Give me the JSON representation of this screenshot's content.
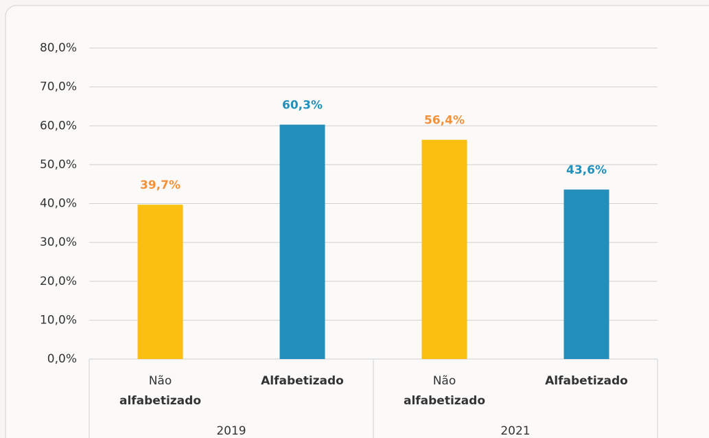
{
  "chart_data": {
    "type": "bar",
    "categories": [
      [
        "Não",
        "alfabetizado"
      ],
      [
        "Alfabetizado"
      ],
      [
        "Não",
        "alfabetizado"
      ],
      [
        "Alfabetizado"
      ]
    ],
    "groups": [
      "2019",
      "2021"
    ],
    "values": [
      39.7,
      60.3,
      56.4,
      43.6
    ],
    "value_labels": [
      "39,7%",
      "60,3%",
      "56,4%",
      "43,6%"
    ],
    "colors": [
      "#fbbf10",
      "#2390bb",
      "#fbbf10",
      "#2390bb"
    ],
    "label_colors": [
      "#f4923a",
      "#2390bb",
      "#f4923a",
      "#2390bb"
    ],
    "ylim": [
      0,
      80
    ],
    "yticks": [
      {
        "value": 0,
        "label": "0,0%"
      },
      {
        "value": 10,
        "label": "10,0%"
      },
      {
        "value": 20,
        "label": "20,0%"
      },
      {
        "value": 30,
        "label": "30,0%"
      },
      {
        "value": 40,
        "label": "40,0%"
      },
      {
        "value": 50,
        "label": "50,0%"
      },
      {
        "value": 60,
        "label": "60,0%"
      },
      {
        "value": 70,
        "label": "70,0%"
      },
      {
        "value": 80,
        "label": "80,0%"
      }
    ],
    "grid": true
  }
}
